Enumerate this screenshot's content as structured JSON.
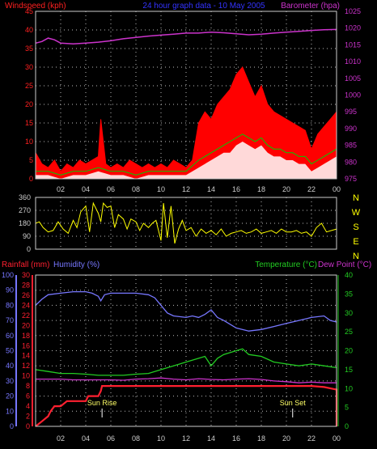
{
  "colors": {
    "background": "#000000",
    "axis": "#cccccc",
    "grid": "#bbbbbb",
    "wind_avg": "#ffffff",
    "wind_gust": "#ff0000",
    "wind_avg_line": "#00cc00",
    "wind_label": "#ff2020",
    "barometer": "#cc33cc",
    "title": "#3333ff",
    "direction": "#ffff00",
    "compass_letters": "#ffff00",
    "rainfall": "#ff2030",
    "humidity": "#7777ff",
    "temperature": "#22cc22",
    "dew_point": "#cc33cc",
    "sun_label": "#ffff66"
  },
  "panels": {
    "top": {
      "title": "24 hour graph data - 10 May 2005",
      "left_label": "Windspeed (kph)",
      "right_label": "Barometer (hpa)"
    },
    "middle": {
      "compass": [
        "N",
        "W",
        "S",
        "E",
        "N"
      ]
    },
    "bottom": {
      "rain_label": "Rainfall (mm)",
      "humidity_label": "Humidity (%)",
      "temp_label": "Temperature (°C)",
      "dew_label": "Dew Point (°C)",
      "sunrise_label": "Sun Rise",
      "sunset_label": "Sun Set"
    }
  },
  "chart_data": [
    {
      "type": "area",
      "title": "24 hour graph data - 10 May 2005",
      "x_ticks": [
        "02",
        "04",
        "06",
        "08",
        "10",
        "12",
        "14",
        "16",
        "18",
        "20",
        "22",
        "00"
      ],
      "xlim": [
        0,
        24
      ],
      "ylabel_left": "Windspeed (kph)",
      "ylim_left": [
        0,
        45
      ],
      "yticks_left": [
        0,
        5,
        10,
        15,
        20,
        25,
        30,
        35,
        40,
        45
      ],
      "ylabel_right": "Barometer (hpa)",
      "ylim_right": [
        975,
        1025
      ],
      "yticks_right": [
        975,
        980,
        985,
        990,
        995,
        1000,
        1005,
        1010,
        1015,
        1020,
        1025
      ],
      "grid": true,
      "series": [
        {
          "name": "Windspeed gust",
          "x": [
            0,
            0.5,
            1,
            1.5,
            2,
            2.5,
            3,
            3.5,
            4,
            4.5,
            5,
            5.2,
            5.6,
            6,
            6.5,
            7,
            7.5,
            8,
            8.5,
            9,
            9.5,
            10,
            10.5,
            11,
            11.5,
            12,
            12.5,
            13,
            13.5,
            14,
            14.5,
            15,
            15.5,
            16,
            16.5,
            17,
            17.5,
            18,
            18.5,
            19,
            19.5,
            20,
            20.5,
            21,
            21.5,
            22,
            22.5,
            23,
            23.5,
            24
          ],
          "values": [
            7,
            4,
            3,
            5,
            2,
            4,
            3,
            5,
            4,
            5,
            6,
            16,
            4,
            3,
            4,
            3,
            5,
            4,
            3,
            4,
            3,
            4,
            3,
            5,
            4,
            3,
            5,
            15,
            18,
            16,
            20,
            22,
            24,
            28,
            30,
            26,
            22,
            25,
            20,
            18,
            17,
            16,
            15,
            14,
            13,
            8,
            12,
            14,
            16,
            18
          ]
        },
        {
          "name": "Windspeed average",
          "x": [
            0,
            1,
            2,
            3,
            4,
            5,
            6,
            7,
            8,
            9,
            10,
            11,
            12,
            13,
            13.5,
            14,
            14.5,
            15,
            15.5,
            16,
            16.5,
            17,
            17.5,
            18,
            18.5,
            19,
            19.5,
            20,
            20.5,
            21,
            21.5,
            22,
            22.5,
            23,
            23.5,
            24
          ],
          "values": [
            1,
            1,
            0,
            1,
            1,
            2,
            1,
            1,
            0,
            1,
            1,
            1,
            1,
            3,
            4,
            5,
            6,
            7,
            7,
            9,
            10,
            9,
            8,
            9,
            7,
            6,
            6,
            5,
            5,
            4,
            4,
            2,
            3,
            4,
            5,
            6
          ]
        },
        {
          "name": "Windspeed average line",
          "x": [
            0,
            1,
            2,
            3,
            4,
            5,
            6,
            7,
            8,
            9,
            10,
            11,
            12,
            13,
            13.5,
            14,
            14.5,
            15,
            15.5,
            16,
            16.5,
            17,
            17.5,
            18,
            18.5,
            19,
            19.5,
            20,
            20.5,
            21,
            21.5,
            22,
            22.5,
            23,
            23.5,
            24
          ],
          "values": [
            2,
            2,
            1,
            2,
            2,
            3,
            2,
            2,
            1,
            2,
            2,
            2,
            2,
            5,
            6,
            7,
            8,
            9,
            10,
            11,
            12,
            11,
            10,
            11,
            9,
            8,
            8,
            7,
            7,
            6,
            6,
            4,
            5,
            6,
            7,
            8
          ]
        },
        {
          "name": "Barometer",
          "axis": "right",
          "x": [
            0,
            0.5,
            1,
            1.5,
            2,
            3,
            4,
            5,
            6,
            7,
            8,
            9,
            10,
            11,
            12,
            13,
            14,
            15,
            16,
            17,
            18,
            19,
            20,
            21,
            22,
            23,
            24
          ],
          "values": [
            1015.5,
            1016,
            1017,
            1016.5,
            1015.5,
            1015.3,
            1015.5,
            1015.8,
            1016.2,
            1016.8,
            1017.2,
            1017.6,
            1017.9,
            1018.2,
            1018.5,
            1018.5,
            1018.8,
            1018.6,
            1018.3,
            1018,
            1018.2,
            1018.5,
            1018.8,
            1019,
            1019.3,
            1019.5,
            1019.6
          ]
        }
      ]
    },
    {
      "type": "line",
      "x_ticks": [],
      "xlim": [
        0,
        24
      ],
      "ylim": [
        0,
        360
      ],
      "yticks": [
        0,
        90,
        180,
        270,
        360
      ],
      "ylabel_right": [
        "N",
        "W",
        "S",
        "E",
        "N"
      ],
      "grid": true,
      "series": [
        {
          "name": "Wind direction",
          "x": [
            0,
            0.3,
            0.6,
            1,
            1.4,
            1.8,
            2.2,
            2.6,
            3,
            3.3,
            3.6,
            4,
            4.3,
            4.6,
            5,
            5.2,
            5.4,
            5.7,
            6,
            6.3,
            6.6,
            7,
            7.3,
            7.6,
            8,
            8.3,
            8.6,
            9,
            9.3,
            9.6,
            10,
            10.2,
            10.5,
            10.8,
            11.1,
            11.4,
            11.7,
            12,
            12.4,
            12.8,
            13.2,
            13.6,
            14,
            14.4,
            14.8,
            15.2,
            15.6,
            16,
            16.4,
            16.8,
            17.2,
            17.6,
            18,
            18.4,
            18.8,
            19.2,
            19.6,
            20,
            20.4,
            20.8,
            21.2,
            21.6,
            22,
            22.4,
            22.8,
            23.2,
            23.6,
            24
          ],
          "values": [
            180,
            190,
            150,
            120,
            130,
            190,
            140,
            110,
            200,
            150,
            260,
            300,
            120,
            320,
            250,
            190,
            320,
            290,
            300,
            150,
            240,
            210,
            140,
            210,
            190,
            130,
            180,
            150,
            180,
            200,
            60,
            320,
            80,
            300,
            40,
            140,
            200,
            130,
            150,
            90,
            140,
            110,
            130,
            100,
            140,
            90,
            110,
            120,
            130,
            110,
            120,
            140,
            110,
            120,
            130,
            110,
            140,
            120,
            120,
            130,
            110,
            120,
            90,
            150,
            180,
            120,
            130,
            140
          ]
        }
      ]
    },
    {
      "type": "line",
      "x_ticks": [
        "02",
        "04",
        "06",
        "08",
        "10",
        "12",
        "14",
        "16",
        "18",
        "20",
        "22",
        "00"
      ],
      "xlim": [
        0,
        24
      ],
      "ylabel_left": "Rainfall (mm)",
      "ylim_rain": [
        0,
        30
      ],
      "yticks_rain": [
        0,
        2,
        4,
        6,
        8,
        10,
        12,
        14,
        16,
        18,
        20,
        22,
        24,
        26,
        28,
        30
      ],
      "ylabel_humidity": "Humidity (%)",
      "ylim_humidity": [
        0,
        100
      ],
      "yticks_humidity": [
        0,
        10,
        20,
        30,
        40,
        50,
        60,
        70,
        80,
        90,
        100
      ],
      "ylabel_right": "Temperature (°C)",
      "ylabel_right2": "Dew Point (°C)",
      "ylim_temp": [
        0,
        40
      ],
      "yticks_temp": [
        0,
        5,
        10,
        15,
        20,
        25,
        30,
        35,
        40
      ],
      "grid": true,
      "annotations": [
        {
          "text": "Sun Rise",
          "x": 5.3
        },
        {
          "text": "Sun Set",
          "x": 20.5
        }
      ],
      "series": [
        {
          "name": "Rainfall",
          "axis": "rain",
          "x": [
            0,
            0.5,
            1,
            1.2,
            1.5,
            2,
            2.5,
            3,
            3.5,
            4,
            4.2,
            4.5,
            5,
            5.2,
            5.3,
            6,
            8,
            10,
            12,
            14,
            16,
            18,
            20,
            22,
            23,
            23.6,
            24,
            24
          ],
          "values": [
            0,
            1,
            2,
            3,
            4,
            4,
            5,
            5,
            5,
            5,
            6,
            6,
            6,
            7,
            8,
            8,
            8,
            8,
            8,
            8,
            8,
            8,
            8,
            8,
            7.8,
            7.5,
            7.3,
            0
          ]
        },
        {
          "name": "Humidity",
          "axis": "humidity",
          "x": [
            0,
            0.5,
            1,
            2,
            3,
            4,
            4.5,
            5,
            5.2,
            5.5,
            6,
            7,
            8,
            9,
            9.5,
            10,
            10.5,
            11,
            12,
            12.5,
            13,
            13.5,
            14,
            14.5,
            15,
            16,
            17,
            18,
            19,
            20,
            21,
            22,
            23,
            23.5,
            24
          ],
          "values": [
            80,
            84,
            87,
            88,
            89,
            89,
            88,
            86,
            83,
            87,
            88,
            88,
            88,
            87,
            85,
            80,
            75,
            73,
            72,
            73,
            72,
            74,
            77,
            72,
            70,
            65,
            63,
            64,
            66,
            68,
            70,
            72,
            73,
            70,
            69
          ]
        },
        {
          "name": "Temperature",
          "axis": "temp",
          "x": [
            0,
            1,
            2,
            3,
            4,
            5,
            6,
            7,
            8,
            9,
            10,
            11,
            12,
            13,
            13.5,
            14,
            14.5,
            15,
            16,
            16.5,
            17,
            18,
            19,
            20,
            21,
            22,
            23,
            24
          ],
          "values": [
            15,
            14.5,
            14,
            14,
            13.8,
            13.5,
            13.5,
            13.5,
            13.8,
            14,
            15,
            16,
            17,
            18,
            18.5,
            16,
            18,
            19,
            20,
            20.5,
            19,
            18.5,
            17,
            16.5,
            16,
            16.5,
            16,
            15.5
          ]
        },
        {
          "name": "Dew Point",
          "axis": "temp",
          "x": [
            0,
            1,
            2,
            3,
            4,
            5,
            6,
            7,
            8,
            9,
            10,
            11,
            12,
            13,
            14,
            15,
            16,
            17,
            18,
            19,
            20,
            21,
            22,
            23,
            24
          ],
          "values": [
            12.5,
            12.5,
            12.5,
            12.3,
            12.3,
            12.3,
            12.3,
            12.2,
            12.5,
            12.6,
            12.8,
            12.5,
            12.3,
            12.6,
            12.4,
            12.3,
            12.5,
            12.6,
            12.4,
            12,
            11.8,
            11.5,
            11.7,
            11.5,
            11.5
          ]
        }
      ]
    }
  ]
}
